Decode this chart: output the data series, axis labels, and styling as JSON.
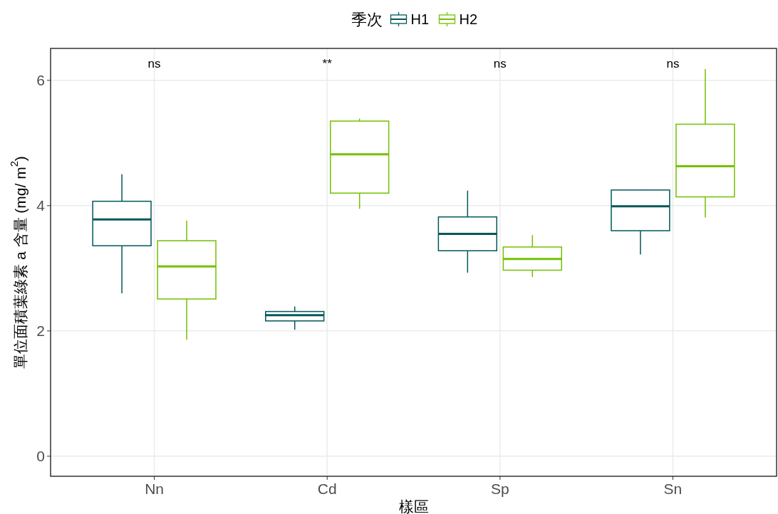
{
  "chart_data": {
    "type": "box",
    "xlabel": "樣區",
    "ylabel": "單位面積葉綠素 a 含量 (mg/ m$^{2}$)",
    "legend_title": "季次",
    "legend": "top",
    "grid": true,
    "categories": [
      "Nn",
      "Cd",
      "Sp",
      "Sn"
    ],
    "ylim": [
      -0.32,
      6.51
    ],
    "yticks": [
      0,
      2,
      4,
      6
    ],
    "series": [
      {
        "name": "H1",
        "color": "#00585a",
        "boxes": [
          {
            "low": 2.6,
            "q1": 3.36,
            "median": 3.78,
            "q3": 4.07,
            "high": 4.5
          },
          {
            "low": 2.02,
            "q1": 2.16,
            "median": 2.25,
            "q3": 2.31,
            "high": 2.39
          },
          {
            "low": 2.93,
            "q1": 3.28,
            "median": 3.55,
            "q3": 3.82,
            "high": 4.24
          },
          {
            "low": 3.22,
            "q1": 3.6,
            "median": 3.99,
            "q3": 4.25,
            "high": 4.26
          }
        ]
      },
      {
        "name": "H2",
        "color": "#74c000",
        "boxes": [
          {
            "low": 1.86,
            "q1": 2.51,
            "median": 3.03,
            "q3": 3.44,
            "high": 3.76
          },
          {
            "low": 3.95,
            "q1": 4.2,
            "median": 4.82,
            "q3": 5.35,
            "high": 5.39
          },
          {
            "low": 2.86,
            "q1": 2.97,
            "median": 3.15,
            "q3": 3.34,
            "high": 3.53
          },
          {
            "low": 3.81,
            "q1": 4.14,
            "median": 4.63,
            "q3": 5.3,
            "high": 6.18
          }
        ]
      }
    ],
    "annotations": [
      "ns",
      "**",
      "ns",
      "ns"
    ]
  }
}
